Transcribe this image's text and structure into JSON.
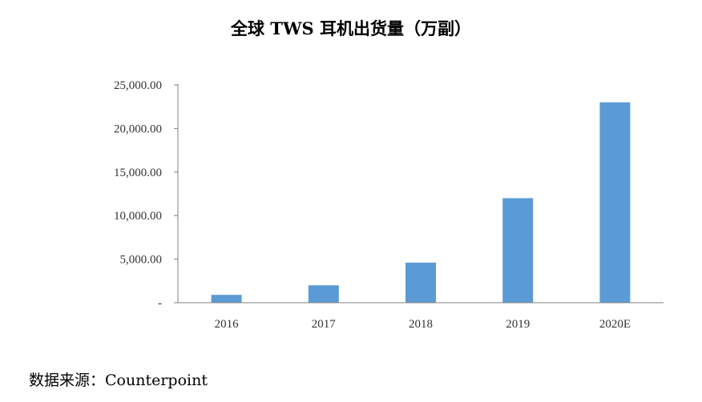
{
  "chart_data": {
    "type": "bar",
    "title": "全球 TWS 耳机出货量（万副）",
    "categories": [
      "2016",
      "2017",
      "2018",
      "2019",
      "2020E"
    ],
    "values": [
      900,
      2000,
      4600,
      12000,
      23000
    ],
    "ylim": [
      0,
      25000
    ],
    "yticks": [
      0,
      5000,
      10000,
      15000,
      20000,
      25000
    ],
    "ytick_labels": [
      "-",
      "5,000.00",
      "10,000.00",
      "15,000.00",
      "20,000.00",
      "25,000.00"
    ],
    "bar_color": "#5b9bd5",
    "grid": false
  },
  "source": "数据来源：Counterpoint"
}
